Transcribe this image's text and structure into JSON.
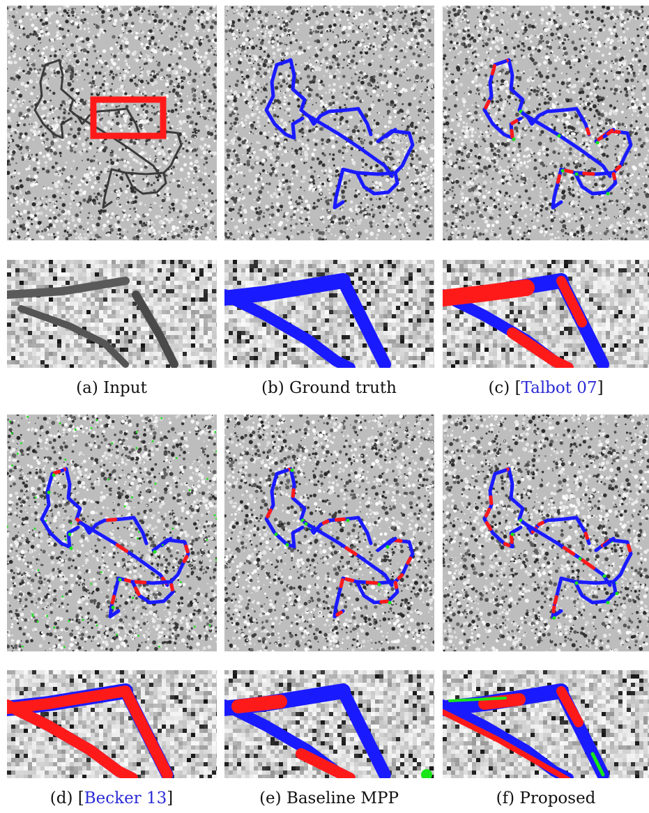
{
  "figure": {
    "captions": [
      {
        "id": "a",
        "label": "(a)",
        "text": "Input"
      },
      {
        "id": "b",
        "label": "(b)",
        "text": "Ground truth"
      },
      {
        "id": "c",
        "label": "(c)",
        "bracket_open": "[",
        "cite": "Talbot 07",
        "bracket_close": "]"
      },
      {
        "id": "d",
        "label": "(d)",
        "bracket_open": "[",
        "cite": "Becker 13",
        "bracket_close": "]"
      },
      {
        "id": "e",
        "label": "(e)",
        "text": "Baseline MPP"
      },
      {
        "id": "f",
        "label": "(f)",
        "text": "Proposed"
      }
    ]
  },
  "colors": {
    "ground_truth": "#1a1aff",
    "mismatch": "#ff1a1a",
    "extra": "#19e619",
    "zoom_box": "#ff1a1a",
    "citation": "#2a2ad6"
  }
}
